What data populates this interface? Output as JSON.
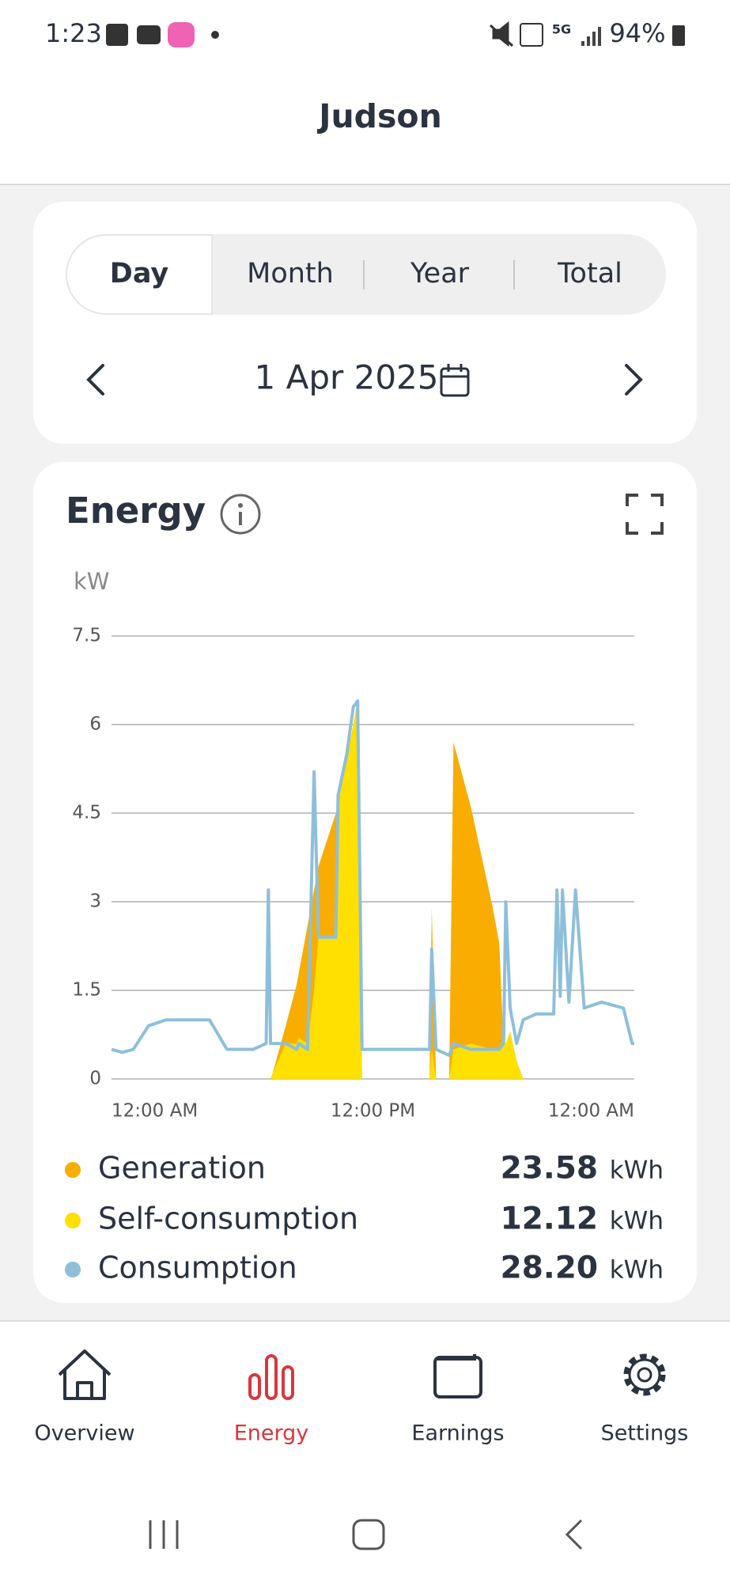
{
  "status_bar": {
    "time": "1:23",
    "network": "5G",
    "battery": "94%"
  },
  "header": {
    "title": "Judson"
  },
  "period_tabs": [
    "Day",
    "Month",
    "Year",
    "Total"
  ],
  "date": "1 Apr 2025",
  "chart_data": {
    "type": "area",
    "title": "Energy",
    "ylabel": "kW",
    "x": [
      0,
      0.5,
      1.0,
      1.7,
      2.5,
      3.5,
      4.5,
      5.3,
      6.5,
      7.1,
      7.2,
      7.3,
      7.4,
      8.0,
      8.5,
      8.6,
      9.0,
      9.3,
      9.5,
      10.3,
      10.4,
      10.8,
      11.1,
      11.3,
      11.5,
      12.5,
      14.0,
      14.6,
      14.7,
      14.9,
      15.5,
      15.7,
      16.5,
      17.5,
      17.8,
      18.0,
      18.1,
      18.3,
      18.6,
      18.9,
      19.5,
      20.3,
      20.45,
      20.6,
      20.7,
      21.0,
      21.3,
      21.7,
      22.5,
      23.5,
      23.9,
      24
    ],
    "xlim": [
      0,
      24
    ],
    "xticks": [
      {
        "value": 0,
        "label": "12:00 AM"
      },
      {
        "value": 12,
        "label": "12:00 PM"
      },
      {
        "value": 24,
        "label": "12:00 AM"
      }
    ],
    "ylim": [
      0,
      7.5
    ],
    "yticks": [
      0,
      1.5,
      3,
      4.5,
      6,
      7.5
    ],
    "grid": true,
    "series": [
      {
        "name": "Generation",
        "color": "#f8ad00",
        "style": "area",
        "total": "23.58",
        "total_unit": "kWh",
        "values": [
          0,
          0,
          0,
          0,
          0,
          0,
          0,
          0,
          0,
          0,
          0,
          0,
          0.1,
          0.9,
          1.6,
          1.8,
          2.6,
          3.2,
          3.6,
          4.5,
          4.7,
          5.4,
          6.0,
          6.4,
          0,
          0,
          0,
          0,
          2.9,
          0,
          0,
          5.7,
          4.6,
          2.9,
          2.3,
          0.6,
          0.6,
          0.8,
          0.3,
          0,
          0,
          0,
          0,
          0,
          0,
          0,
          0,
          0,
          0,
          0,
          0,
          0
        ]
      },
      {
        "name": "Self-consumption",
        "color": "#ffe000",
        "style": "area",
        "total": "12.12",
        "total_unit": "kWh",
        "values": [
          0,
          0,
          0,
          0,
          0,
          0,
          0,
          0,
          0,
          0,
          0,
          0,
          0.1,
          0.6,
          0.6,
          0.7,
          0.6,
          1.5,
          2.4,
          2.4,
          4.7,
          5.4,
          6.0,
          6.4,
          0,
          0,
          0,
          0,
          0.5,
          0,
          0,
          0.5,
          0.6,
          0.5,
          0.5,
          0.6,
          0.6,
          0.8,
          0.3,
          0,
          0,
          0,
          0,
          0,
          0,
          0,
          0,
          0,
          0,
          0,
          0,
          0
        ]
      },
      {
        "name": "Consumption",
        "color": "#8ebfda",
        "style": "line",
        "total": "28.20",
        "total_unit": "kWh",
        "values": [
          0.5,
          0.45,
          0.5,
          0.9,
          1.0,
          1.0,
          1.0,
          0.5,
          0.5,
          0.6,
          3.2,
          0.6,
          0.6,
          0.6,
          0.5,
          0.6,
          0.5,
          5.2,
          2.4,
          2.4,
          4.8,
          5.5,
          6.3,
          6.4,
          0.5,
          0.5,
          0.5,
          0.5,
          2.2,
          0.5,
          0.4,
          0.6,
          0.5,
          0.5,
          0.5,
          0.6,
          3.0,
          1.2,
          0.6,
          1.0,
          1.1,
          1.1,
          3.2,
          1.4,
          3.2,
          1.3,
          3.2,
          1.2,
          1.3,
          1.2,
          0.6,
          0.6
        ]
      }
    ]
  },
  "nav": {
    "items": [
      "Overview",
      "Energy",
      "Earnings",
      "Settings"
    ]
  }
}
